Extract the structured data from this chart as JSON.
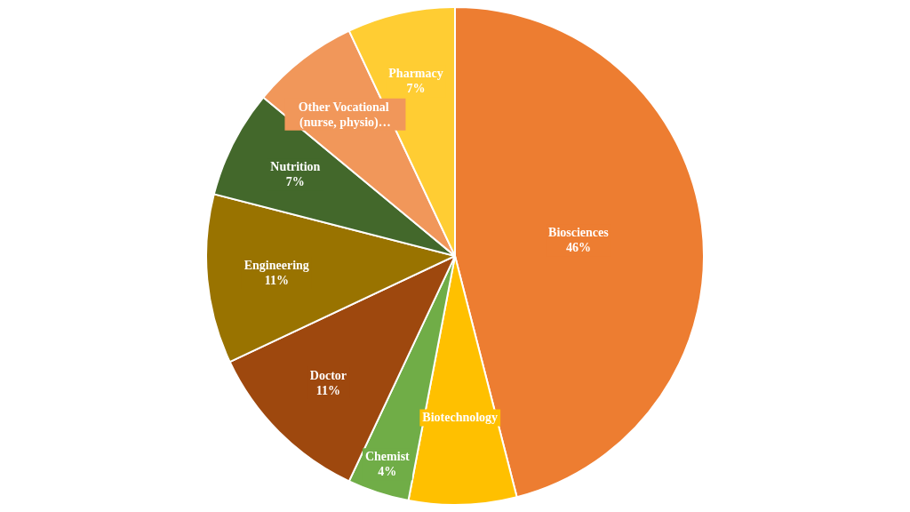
{
  "chart_data": {
    "type": "pie",
    "categories": [
      "Biosciences",
      "Biotechnology",
      "Chemist",
      "Doctor",
      "Engineering",
      "Nutrition",
      "Other Vocational (nurse, physio)…",
      "Pharmacy"
    ],
    "values": [
      46,
      7,
      4,
      11,
      11,
      7,
      7,
      7
    ],
    "value_labels": [
      "46%",
      null,
      "4%",
      "11%",
      "11%",
      "7%",
      null,
      "7%"
    ],
    "colors": [
      "#ed7d31",
      "#ffc000",
      "#70ad47",
      "#9e480e",
      "#997300",
      "#43682b",
      "#f1975a",
      "#ffcd33"
    ],
    "legend": false
  }
}
